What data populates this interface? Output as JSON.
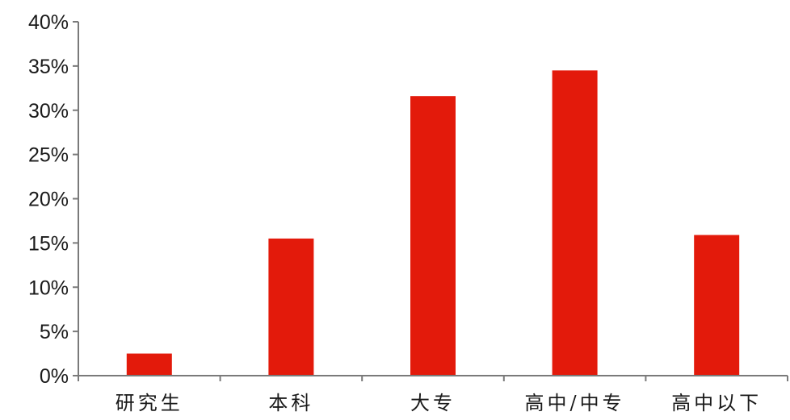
{
  "chart_data": {
    "type": "bar",
    "categories": [
      "研究生",
      "本科",
      "大专",
      "高中/中专",
      "高中以下"
    ],
    "values": [
      0.025,
      0.155,
      0.316,
      0.345,
      0.159
    ],
    "ylim": [
      0,
      0.4
    ],
    "yticks": [
      0,
      0.05,
      0.1,
      0.15,
      0.2,
      0.25,
      0.3,
      0.35,
      0.4
    ],
    "ytick_labels": [
      "0%",
      "5%",
      "10%",
      "15%",
      "20%",
      "25%",
      "30%",
      "35%",
      "40%"
    ],
    "bar_color": "#e31a0b",
    "axis_color": "#7a7a7a",
    "grid": false,
    "legend": false
  }
}
